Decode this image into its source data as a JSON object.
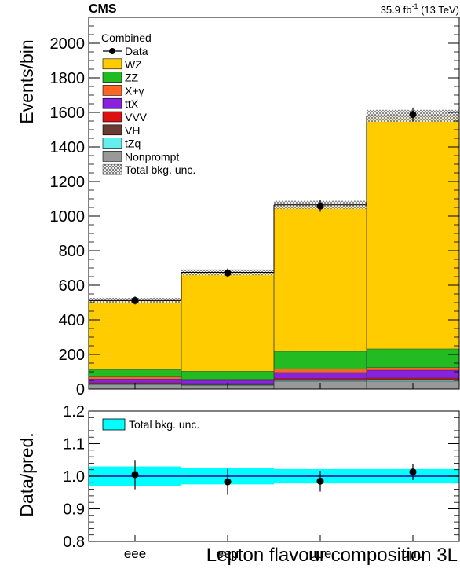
{
  "header": {
    "experiment": "CMS",
    "lumi": "35.9 fb",
    "lumi_sup": "-1",
    "energy": " (13 TeV)"
  },
  "colors": {
    "WZ": "#ffcc00",
    "ZZ": "#22bb22",
    "X+γ": "#ff6622",
    "ttX": "#8822dd",
    "VVV": "#dd1111",
    "VH": "#6b3a32",
    "tZq": "#66eeee",
    "Nonprompt": "#999999",
    "unc_band": "#00ffff",
    "unc_line": "#0000aa"
  },
  "chart_data": [
    {
      "type": "bar",
      "stacked": true,
      "categories": [
        "eee",
        "eeμ",
        "μμe",
        "μμμ"
      ],
      "series": [
        {
          "name": "Nonprompt",
          "values": [
            25,
            20,
            45,
            45
          ]
        },
        {
          "name": "tZq",
          "values": [
            3,
            3,
            4,
            5
          ]
        },
        {
          "name": "VH",
          "values": [
            4,
            5,
            6,
            7
          ]
        },
        {
          "name": "VVV",
          "values": [
            4,
            4,
            6,
            7
          ]
        },
        {
          "name": "ttX",
          "values": [
            22,
            18,
            35,
            45
          ]
        },
        {
          "name": "X+γ",
          "values": [
            12,
            6,
            20,
            15
          ]
        },
        {
          "name": "ZZ",
          "values": [
            42,
            47,
            102,
            108
          ]
        },
        {
          "name": "WZ",
          "values": [
            400,
            572,
            847,
            1348
          ]
        }
      ],
      "data": {
        "name": "Data",
        "values": [
          512,
          672,
          1058,
          1588
        ],
        "errors": [
          23,
          26,
          33,
          40
        ]
      },
      "total_unc_frac": [
        0.03,
        0.025,
        0.022,
        0.022
      ],
      "legend_title": "Combined",
      "legend": [
        "Data",
        "WZ",
        "ZZ",
        "X+γ",
        "ttX",
        "VVV",
        "VH",
        "tZq",
        "Nonprompt",
        "Total bkg. unc."
      ],
      "ylabel": "Events/bin",
      "ylim": [
        0,
        2150
      ],
      "yticks": [
        0,
        200,
        400,
        600,
        800,
        1000,
        1200,
        1400,
        1600,
        1800,
        2000
      ]
    },
    {
      "type": "scatter",
      "categories": [
        "eee",
        "eeμ",
        "μμe",
        "μμμ"
      ],
      "values": [
        1.005,
        0.983,
        0.985,
        1.013
      ],
      "errors": [
        0.045,
        0.04,
        0.032,
        0.025
      ],
      "band": [
        0.03,
        0.025,
        0.022,
        0.022
      ],
      "legend": [
        "Total bkg. unc."
      ],
      "ylabel": "Data/pred.",
      "xlabel": "Lepton flavour composition 3L",
      "ylim": [
        0.8,
        1.2
      ],
      "yticks": [
        0.8,
        0.9,
        1.0,
        1.1,
        1.2
      ]
    }
  ]
}
